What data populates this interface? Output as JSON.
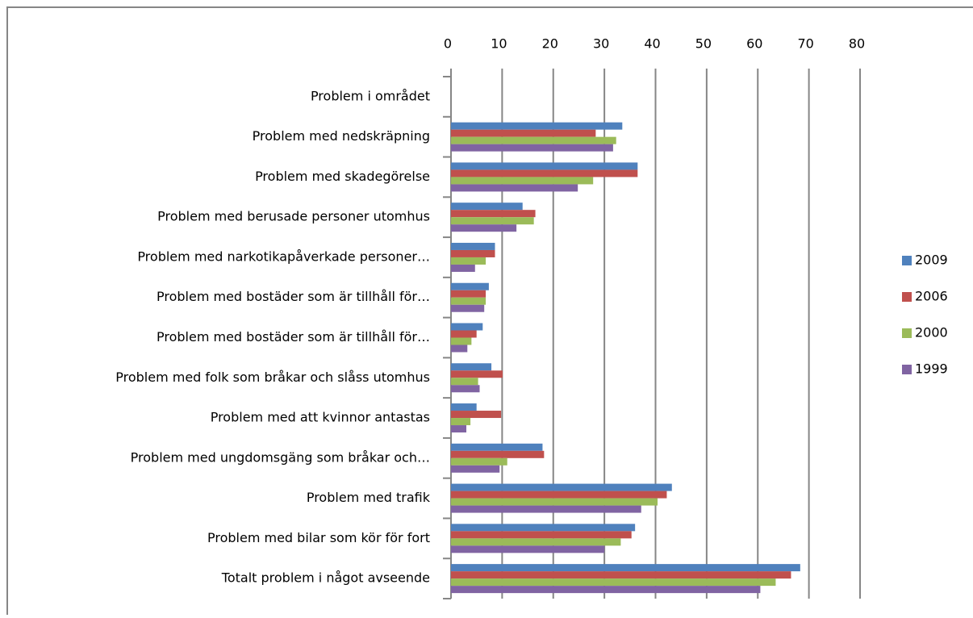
{
  "chart_data": {
    "type": "bar",
    "orientation": "horizontal",
    "categories": [
      "Problem i området",
      "Problem med nedskräpning",
      "Problem med skadegörelse",
      "Problem med berusade personer utomhus",
      "Problem med narkotikapåverkade personer…",
      "Problem med bostäder som är tillhåll för…",
      "Problem med bostäder som är tillhåll för…",
      "Problem med folk som bråkar och slåss utomhus",
      "Problem med att kvinnor antastas",
      "Problem med ungdomsgäng som bråkar och…",
      "Problem med trafik",
      "Problem med bilar som kör för fort",
      "Totalt problem i något avseende"
    ],
    "series": [
      {
        "name": "2009",
        "color": "#4f81bd",
        "values": [
          null,
          33.5,
          36.5,
          14,
          8.6,
          7.4,
          6.2,
          7.9,
          5,
          17.9,
          43.2,
          36,
          68.3
        ]
      },
      {
        "name": "2006",
        "color": "#c0504d",
        "values": [
          null,
          28.3,
          36.5,
          16.5,
          8.6,
          6.8,
          5,
          10.1,
          9.8,
          18.2,
          42.2,
          35.3,
          66.5
        ]
      },
      {
        "name": "2000",
        "color": "#9bbb59",
        "values": [
          null,
          32.3,
          27.8,
          16.2,
          6.8,
          6.8,
          4,
          5.3,
          3.8,
          11,
          40.4,
          33.2,
          63.5
        ]
      },
      {
        "name": "1999",
        "color": "#8064a2",
        "values": [
          null,
          31.7,
          24.8,
          12.8,
          4.7,
          6.5,
          3.2,
          5.6,
          3,
          9.5,
          37.2,
          30,
          60.5
        ]
      }
    ],
    "xlim": [
      0,
      80
    ],
    "xticks": [
      0,
      10,
      20,
      30,
      40,
      50,
      60,
      70,
      80
    ],
    "grid": true,
    "legend": "right"
  }
}
